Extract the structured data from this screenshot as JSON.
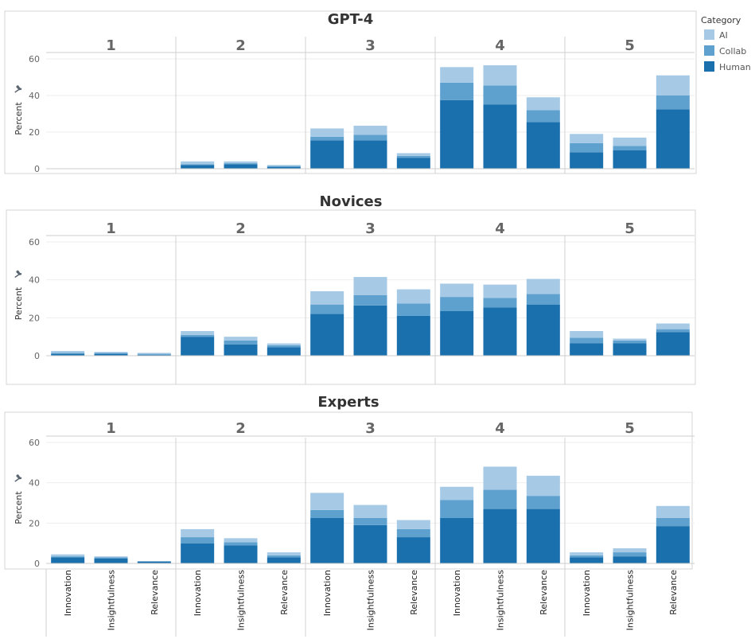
{
  "legend": {
    "title": "Category",
    "items": [
      {
        "name": "AI",
        "color": "#a6cae6"
      },
      {
        "name": "Collab",
        "color": "#5ea1cf"
      },
      {
        "name": "Human",
        "color": "#1a6fad"
      }
    ]
  },
  "y_axis": {
    "label": "Percent",
    "ticks": [
      0,
      20,
      40,
      60
    ],
    "ylim": [
      -3,
      66
    ]
  },
  "icons": {
    "pin": "pin-icon"
  },
  "chart_data": {
    "type": "bar",
    "stacked": true,
    "stack_order": [
      "Human",
      "Collab",
      "AI"
    ],
    "scores": [
      "1",
      "2",
      "3",
      "4",
      "5"
    ],
    "criteria": [
      "Innovation",
      "Insightfulness",
      "Relevance"
    ],
    "ylabel": "Percent",
    "ylim": [
      -3,
      66
    ],
    "panels": [
      {
        "title": "GPT-4",
        "data": [
          [
            [
              0,
              0,
              0
            ],
            [
              0,
              0,
              0
            ],
            [
              0,
              0,
              0
            ]
          ],
          [
            [
              2,
              0.5,
              1.5
            ],
            [
              2.5,
              0.5,
              1
            ],
            [
              1,
              0.5,
              0.5
            ]
          ],
          [
            [
              15.5,
              2,
              4.5
            ],
            [
              15.5,
              3,
              5
            ],
            [
              6,
              1,
              1.5
            ]
          ],
          [
            [
              37.5,
              9.5,
              8.5
            ],
            [
              35,
              10.5,
              11
            ],
            [
              25.5,
              6.5,
              7
            ]
          ],
          [
            [
              9,
              5,
              5
            ],
            [
              10,
              2.5,
              4.5
            ],
            [
              32.5,
              7.5,
              11
            ]
          ]
        ]
      },
      {
        "title": "Novices",
        "data": [
          [
            [
              1,
              0.5,
              1
            ],
            [
              1,
              0.5,
              0.5
            ],
            [
              0.5,
              0.5,
              0.5
            ]
          ],
          [
            [
              10,
              1,
              2
            ],
            [
              6,
              2,
              2
            ],
            [
              4.5,
              1,
              1
            ]
          ],
          [
            [
              22,
              5,
              7
            ],
            [
              26.5,
              5.5,
              9.5
            ],
            [
              21,
              6.5,
              7.5
            ]
          ],
          [
            [
              23.5,
              7.5,
              7
            ],
            [
              25.5,
              5,
              7
            ],
            [
              27,
              5.5,
              8
            ]
          ],
          [
            [
              6.5,
              3,
              3.5
            ],
            [
              6.5,
              1.5,
              1
            ],
            [
              12.5,
              1.5,
              3
            ]
          ]
        ]
      },
      {
        "title": "Experts",
        "data": [
          [
            [
              3,
              0.5,
              1
            ],
            [
              2.5,
              0.5,
              0.5
            ],
            [
              1,
              0,
              0
            ]
          ],
          [
            [
              10,
              3,
              4
            ],
            [
              9,
              1.5,
              2
            ],
            [
              3,
              1,
              1.5
            ]
          ],
          [
            [
              22.5,
              4,
              8.5
            ],
            [
              19,
              3.5,
              6.5
            ],
            [
              13,
              4,
              4.5
            ]
          ],
          [
            [
              22.5,
              9,
              6.5
            ],
            [
              27,
              9.5,
              11.5
            ],
            [
              27,
              6.5,
              10
            ]
          ],
          [
            [
              3,
              1,
              1.5
            ],
            [
              3.5,
              2,
              2
            ],
            [
              18.5,
              4,
              6
            ]
          ]
        ]
      }
    ]
  }
}
